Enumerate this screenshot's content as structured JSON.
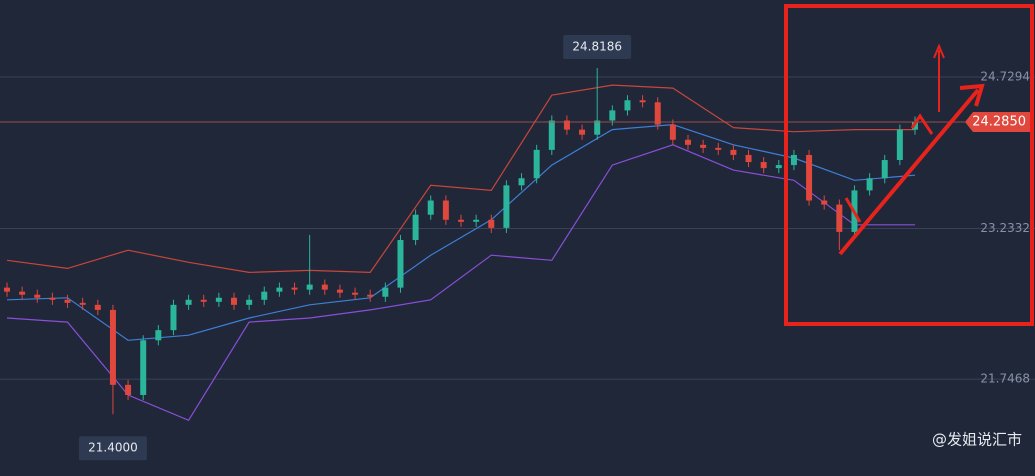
{
  "chart_data": {
    "type": "candlestick",
    "ylim": [
      20.79,
      25.49
    ],
    "yticks": [
      24.7294,
      23.2332,
      21.7468
    ],
    "grid": true,
    "up_color": "#2bb59a",
    "down_color": "#e0473d",
    "open": [
      22.65,
      22.61,
      22.58,
      22.55,
      22.53,
      22.5,
      22.48,
      22.43,
      21.69,
      21.59,
      22.13,
      22.23,
      22.48,
      22.53,
      22.51,
      22.55,
      22.48,
      22.53,
      22.61,
      22.65,
      22.63,
      22.68,
      22.63,
      22.6,
      22.58,
      22.56,
      22.65,
      23.12,
      23.37,
      23.51,
      23.32,
      23.3,
      23.32,
      23.24,
      23.66,
      23.73,
      24.01,
      24.3,
      24.21,
      24.16,
      24.3,
      24.4,
      24.5,
      24.48,
      24.26,
      24.11,
      24.06,
      24.03,
      24.01,
      23.96,
      23.89,
      23.83,
      23.86,
      23.96,
      23.51,
      23.47,
      23.2,
      23.61,
      23.73,
      23.91,
      24.21
    ],
    "high": [
      22.7,
      22.66,
      22.63,
      22.6,
      22.58,
      22.55,
      22.53,
      22.48,
      21.74,
      22.18,
      22.28,
      22.53,
      22.58,
      22.58,
      22.6,
      22.6,
      22.58,
      22.66,
      22.7,
      22.7,
      23.17,
      22.73,
      22.68,
      22.65,
      22.63,
      22.7,
      23.17,
      23.42,
      23.56,
      23.56,
      23.37,
      23.37,
      23.37,
      23.71,
      23.78,
      24.06,
      24.35,
      24.35,
      24.26,
      24.8186,
      24.45,
      24.55,
      24.55,
      24.53,
      24.31,
      24.16,
      24.11,
      24.08,
      24.06,
      24.01,
      23.94,
      23.91,
      24.01,
      24.01,
      23.56,
      23.52,
      23.66,
      23.78,
      23.96,
      24.26,
      24.34
    ],
    "low": [
      22.56,
      22.53,
      22.5,
      22.48,
      22.45,
      22.43,
      22.38,
      21.4,
      21.54,
      21.54,
      22.08,
      22.18,
      22.43,
      22.46,
      22.46,
      22.43,
      22.43,
      22.48,
      22.56,
      22.58,
      22.58,
      22.58,
      22.55,
      22.53,
      22.51,
      22.51,
      22.6,
      23.07,
      23.32,
      23.27,
      23.25,
      23.25,
      23.19,
      23.19,
      23.61,
      23.68,
      23.96,
      24.16,
      24.11,
      24.11,
      24.25,
      24.35,
      24.43,
      24.21,
      24.06,
      24.01,
      23.98,
      23.96,
      23.91,
      23.84,
      23.78,
      23.78,
      23.81,
      23.46,
      23.42,
      23.02,
      23.15,
      23.56,
      23.68,
      23.86,
      24.16
    ],
    "close": [
      22.61,
      22.58,
      22.55,
      22.53,
      22.5,
      22.48,
      22.43,
      21.69,
      21.59,
      22.13,
      22.23,
      22.48,
      22.53,
      22.51,
      22.55,
      22.48,
      22.53,
      22.61,
      22.65,
      22.63,
      22.68,
      22.63,
      22.6,
      22.58,
      22.56,
      22.65,
      23.12,
      23.37,
      23.51,
      23.32,
      23.3,
      23.32,
      23.24,
      23.66,
      23.73,
      24.01,
      24.3,
      24.21,
      24.16,
      24.3,
      24.4,
      24.5,
      24.48,
      24.26,
      24.11,
      24.06,
      24.03,
      24.01,
      23.96,
      23.89,
      23.83,
      23.86,
      23.96,
      23.51,
      23.47,
      23.2,
      23.61,
      23.73,
      23.91,
      24.21,
      24.285
    ],
    "bands": [
      {
        "color": "#c8463a",
        "x": [
          0,
          4,
          8,
          12,
          16,
          20,
          24,
          28,
          32,
          36,
          40,
          44,
          48,
          52,
          56,
          60
        ],
        "values": [
          22.92,
          22.84,
          23.02,
          22.9,
          22.8,
          22.82,
          22.8,
          23.66,
          23.61,
          24.55,
          24.65,
          24.62,
          24.23,
          24.19,
          24.21,
          24.21
        ]
      },
      {
        "color": "#3f7fd6",
        "x": [
          0,
          4,
          8,
          12,
          16,
          20,
          24,
          28,
          32,
          36,
          40,
          44,
          48,
          52,
          56,
          60
        ],
        "values": [
          22.53,
          22.55,
          22.13,
          22.18,
          22.35,
          22.48,
          22.55,
          22.97,
          23.32,
          23.86,
          24.21,
          24.26,
          24.06,
          23.93,
          23.71,
          23.76
        ]
      },
      {
        "color": "#8a4fd8",
        "x": [
          0,
          4,
          8,
          12,
          16,
          20,
          24,
          28,
          32,
          36,
          40,
          44,
          48,
          52,
          56,
          60
        ],
        "values": [
          22.35,
          22.31,
          21.59,
          21.34,
          22.31,
          22.35,
          22.43,
          22.53,
          22.97,
          22.92,
          23.86,
          24.06,
          23.81,
          23.71,
          23.27,
          23.27
        ]
      }
    ],
    "high_marker": {
      "value": 24.8186,
      "label": "24.8186"
    },
    "low_marker": {
      "value": 21.4,
      "label": "21.4000"
    },
    "last_price": {
      "value": 24.285,
      "label": "24.2850"
    },
    "watermark": "@发姐说汇市"
  }
}
